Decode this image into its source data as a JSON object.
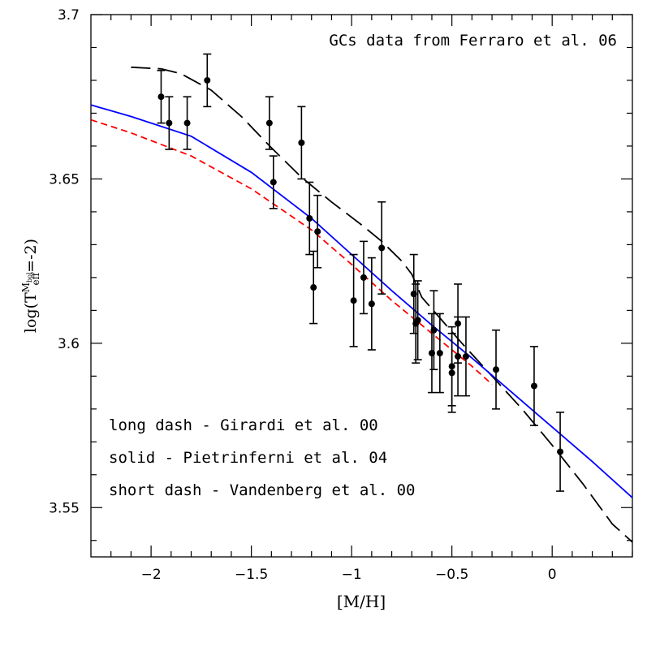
{
  "chart_data": {
    "type": "scatter",
    "title": "GCs data from Ferraro et al. 06",
    "xlabel": "[M/H]",
    "ylabel": {
      "prefix": "log(T",
      "sub": "eff",
      "sup": "M",
      "supsub": "bol",
      "suffix": "=-2)"
    },
    "xlim": [
      -2.3,
      0.4
    ],
    "ylim": [
      3.535,
      3.7
    ],
    "x_ticks": [
      -2,
      -1.5,
      -1,
      -0.5,
      0
    ],
    "x_tick_labels": [
      "−2",
      "−1.5",
      "−1",
      "−0.5",
      "0"
    ],
    "y_ticks": [
      3.55,
      3.6,
      3.65,
      3.7
    ],
    "y_tick_labels": [
      "3.55",
      "3.6",
      "3.65",
      "3.7"
    ],
    "grid": false,
    "legend": {
      "placement": "lower-left",
      "entries": [
        "long dash - Girardi et al. 00",
        "solid - Pietrinferni et al. 04",
        "short dash - Vandenberg et al. 00"
      ]
    },
    "points": [
      {
        "x": -1.95,
        "y": 3.675,
        "err": 0.008
      },
      {
        "x": -1.91,
        "y": 3.667,
        "err": 0.008
      },
      {
        "x": -1.82,
        "y": 3.667,
        "err": 0.008
      },
      {
        "x": -1.72,
        "y": 3.68,
        "err": 0.008
      },
      {
        "x": -1.41,
        "y": 3.667,
        "err": 0.008
      },
      {
        "x": -1.39,
        "y": 3.649,
        "err": 0.008
      },
      {
        "x": -1.25,
        "y": 3.661,
        "err": 0.011
      },
      {
        "x": -1.21,
        "y": 3.638,
        "err": 0.011
      },
      {
        "x": -1.19,
        "y": 3.617,
        "err": 0.011
      },
      {
        "x": -1.17,
        "y": 3.634,
        "err": 0.011
      },
      {
        "x": -0.99,
        "y": 3.613,
        "err": 0.014
      },
      {
        "x": -0.94,
        "y": 3.62,
        "err": 0.011
      },
      {
        "x": -0.9,
        "y": 3.612,
        "err": 0.014
      },
      {
        "x": -0.85,
        "y": 3.629,
        "err": 0.014
      },
      {
        "x": -0.69,
        "y": 3.615,
        "err": 0.012
      },
      {
        "x": -0.68,
        "y": 3.606,
        "err": 0.012
      },
      {
        "x": -0.67,
        "y": 3.607,
        "err": 0.012
      },
      {
        "x": -0.6,
        "y": 3.597,
        "err": 0.012
      },
      {
        "x": -0.59,
        "y": 3.604,
        "err": 0.012
      },
      {
        "x": -0.56,
        "y": 3.597,
        "err": 0.012
      },
      {
        "x": -0.5,
        "y": 3.593,
        "err": 0.012
      },
      {
        "x": -0.5,
        "y": 3.591,
        "err": 0.012
      },
      {
        "x": -0.47,
        "y": 3.606,
        "err": 0.012
      },
      {
        "x": -0.47,
        "y": 3.596,
        "err": 0.012
      },
      {
        "x": -0.43,
        "y": 3.596,
        "err": 0.012
      },
      {
        "x": -0.28,
        "y": 3.592,
        "err": 0.012
      },
      {
        "x": -0.09,
        "y": 3.587,
        "err": 0.012
      },
      {
        "x": 0.04,
        "y": 3.567,
        "err": 0.012
      }
    ],
    "series": [
      {
        "style": "long-dash",
        "color": "#000000",
        "x": [
          -2.1,
          -1.95,
          -1.85,
          -1.7,
          -1.55,
          -1.4,
          -1.25,
          -1.1,
          -0.95,
          -0.85,
          -0.75,
          -0.7,
          -0.65,
          -0.55,
          -0.45,
          -0.3,
          -0.15,
          0.0,
          0.15,
          0.3,
          0.4
        ],
        "y": [
          3.684,
          3.6835,
          3.682,
          3.677,
          3.669,
          3.6595,
          3.6505,
          3.643,
          3.636,
          3.631,
          3.625,
          3.621,
          3.614,
          3.607,
          3.6,
          3.59,
          3.58,
          3.569,
          3.5575,
          3.545,
          3.5395
        ]
      },
      {
        "style": "solid",
        "color": "#0000ff",
        "x": [
          -2.3,
          -2.1,
          -1.8,
          -1.5,
          -1.2,
          -1.0,
          -0.8,
          -0.6,
          -0.4,
          -0.2,
          0.0,
          0.2,
          0.4
        ],
        "y": [
          3.6725,
          3.669,
          3.663,
          3.652,
          3.638,
          3.627,
          3.616,
          3.6055,
          3.5955,
          3.585,
          3.5745,
          3.564,
          3.553
        ]
      },
      {
        "style": "short-dash",
        "color": "#ff0000",
        "x": [
          -2.3,
          -2.1,
          -1.8,
          -1.5,
          -1.2,
          -1.0,
          -0.8,
          -0.6,
          -0.4,
          -0.3
        ],
        "y": [
          3.668,
          3.664,
          3.657,
          3.647,
          3.6345,
          3.624,
          3.613,
          3.603,
          3.593,
          3.5875
        ]
      }
    ]
  }
}
